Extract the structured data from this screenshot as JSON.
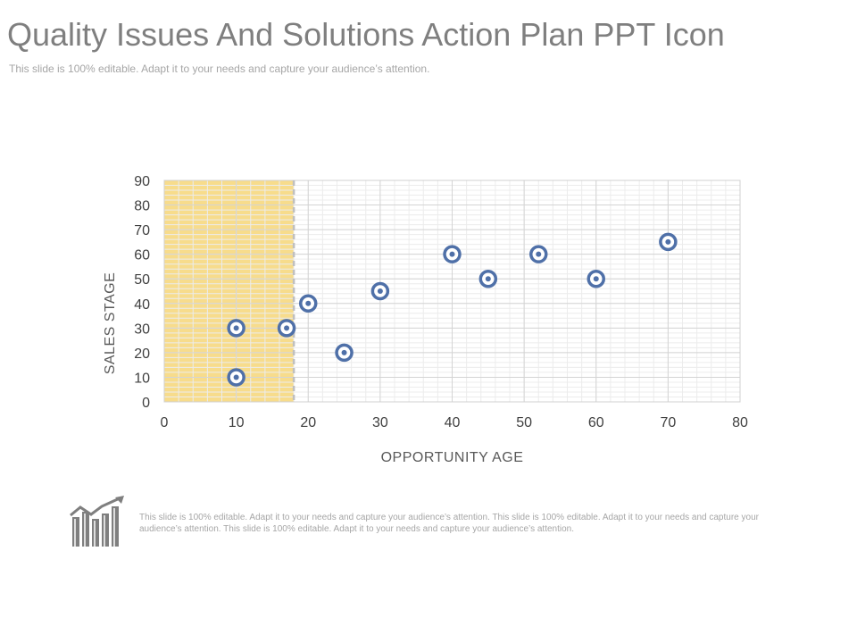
{
  "header": {
    "title": "Quality Issues And Solutions Action Plan PPT Icon",
    "subtitle": "This slide is 100% editable. Adapt it to your needs and capture your audience’s attention."
  },
  "chart_data": {
    "type": "scatter",
    "title": "",
    "xlabel": "OPPORTUNITY AGE",
    "ylabel": "SALES STAGE",
    "xlim": [
      0,
      80
    ],
    "ylim": [
      0,
      90
    ],
    "x_ticks": [
      0,
      10,
      20,
      30,
      40,
      50,
      60,
      70,
      80
    ],
    "y_ticks": [
      0,
      10,
      20,
      30,
      40,
      50,
      60,
      70,
      80,
      90
    ],
    "grid": true,
    "highlight_region": {
      "x": [
        0,
        18
      ],
      "color": "#f7dc8c",
      "boundary_style": "dashed"
    },
    "marker_color": "#4f70a8",
    "series": [
      {
        "points": [
          {
            "x": 10,
            "y": 30
          },
          {
            "x": 10,
            "y": 10
          },
          {
            "x": 17,
            "y": 30
          },
          {
            "x": 20,
            "y": 40
          },
          {
            "x": 25,
            "y": 20
          },
          {
            "x": 30,
            "y": 45
          },
          {
            "x": 40,
            "y": 60
          },
          {
            "x": 45,
            "y": 50
          },
          {
            "x": 52,
            "y": 60
          },
          {
            "x": 60,
            "y": 50
          },
          {
            "x": 70,
            "y": 65
          }
        ]
      }
    ]
  },
  "footer": {
    "icon": "growth-chart-icon",
    "text": "This slide is 100% editable. Adapt it to your needs and capture your audience’s attention. This slide is 100% editable. Adapt it to your needs and capture your audience’s attention. This slide is 100% editable. Adapt it to your needs and capture your audience’s attention."
  }
}
